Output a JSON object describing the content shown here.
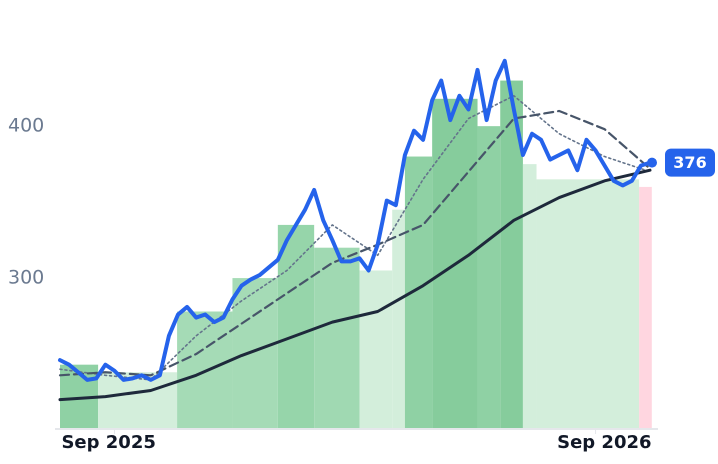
{
  "chart_data": {
    "type": "line",
    "xlim": [
      0,
      65
    ],
    "xticks": [
      {
        "value": 6,
        "label": "Sep 2025"
      },
      {
        "value": 59,
        "label": "Sep 2026"
      }
    ],
    "ylim": [
      200,
      460
    ],
    "yticks": [
      300,
      400
    ],
    "grid": false,
    "bands": {
      "edges": [
        0,
        4.2,
        12.9,
        19,
        24,
        28,
        33,
        36.6,
        38,
        41,
        46,
        48.5,
        51,
        52.5,
        63.8,
        65.2
      ],
      "values": [
        243,
        238,
        278,
        300,
        335,
        320,
        305,
        345,
        380,
        418,
        400,
        430,
        375,
        365,
        360
      ],
      "colors": [
        "#8fd1a4",
        "#d3eedb",
        "#a5dbb6",
        "#a5dbb6",
        "#96d5aa",
        "#a0d9b2",
        "#d3eedb",
        "#d3eedb",
        "#8fd1a4",
        "#86cc9c",
        "#8fd1a4",
        "#86cc9c",
        "#d3eedb",
        "#d3eedb",
        "#ffd6e0"
      ]
    },
    "series": [
      {
        "color": "#2563eb",
        "dash": "solid",
        "x": [
          0,
          1,
          2,
          3,
          4,
          5,
          6,
          7,
          8,
          9,
          10,
          11,
          12,
          13,
          14,
          15,
          16,
          17,
          18,
          19,
          20,
          21,
          22,
          23,
          24,
          25,
          26,
          27,
          28,
          29,
          30,
          31,
          32,
          33,
          34,
          35,
          36,
          37,
          38,
          39,
          40,
          41,
          42,
          43,
          44,
          45,
          46,
          47,
          48,
          49,
          50,
          51,
          52,
          53,
          54,
          55,
          56,
          57,
          58,
          59,
          60,
          61,
          62,
          63,
          64,
          65
        ],
        "values": [
          246,
          243,
          238,
          233,
          234,
          243,
          239,
          233,
          234,
          236,
          233,
          236,
          262,
          276,
          281,
          274,
          276,
          271,
          274,
          286,
          295,
          299,
          302,
          307,
          312,
          325,
          335,
          345,
          358,
          338,
          325,
          311,
          311,
          313,
          305,
          322,
          351,
          348,
          381,
          397,
          391,
          417,
          430,
          404,
          420,
          411,
          437,
          404,
          430,
          443,
          411,
          381,
          395,
          391,
          378,
          381,
          384,
          371,
          391,
          384,
          374,
          364,
          361,
          364,
          374,
          376
        ]
      },
      {
        "color": "#1e293b",
        "dash": "solid",
        "x": [
          0,
          5,
          10,
          15,
          20,
          25,
          30,
          35,
          40,
          45,
          50,
          55,
          60,
          65
        ],
        "values": [
          220,
          222,
          226,
          236,
          249,
          260,
          271,
          278,
          295,
          315,
          338,
          353,
          364,
          371
        ]
      },
      {
        "color": "#475569",
        "dash": "dashed",
        "x": [
          0,
          5,
          10,
          15,
          20,
          25,
          30,
          35,
          40,
          45,
          50,
          55,
          60,
          65
        ],
        "values": [
          236,
          238,
          236,
          250,
          270,
          290,
          310,
          322,
          335,
          370,
          405,
          410,
          398,
          372
        ]
      },
      {
        "color": "#64748b",
        "dash": "dotted",
        "x": [
          0,
          5,
          10,
          15,
          20,
          25,
          30,
          35,
          40,
          45,
          50,
          55,
          60,
          65
        ],
        "values": [
          240,
          236,
          233,
          262,
          285,
          305,
          335,
          315,
          365,
          405,
          420,
          395,
          380,
          370
        ]
      }
    ]
  }
}
